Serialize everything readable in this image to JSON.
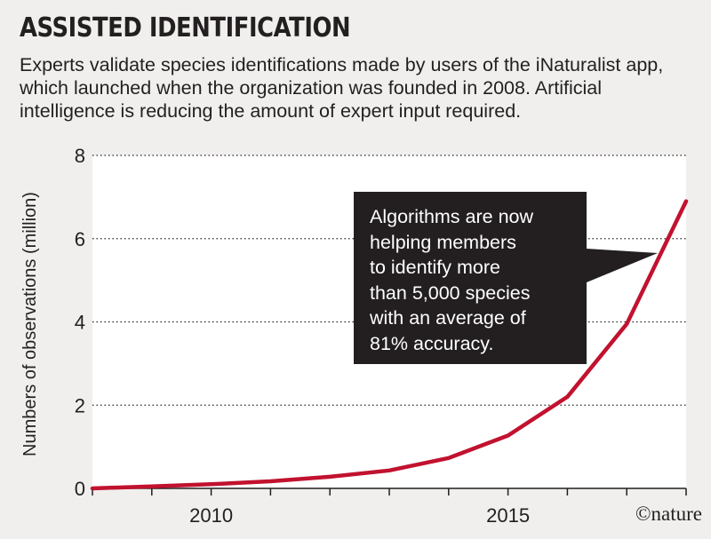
{
  "header": {
    "title": "ASSISTED IDENTIFICATION",
    "subtitle": "Experts validate species identifications made by users of the iNaturalist app, which launched when the organization was founded in 2008. Artificial intelligence is reducing the amount of expert input required."
  },
  "callout": {
    "lines": [
      "Algorithms are now",
      "helping members",
      "to identify more",
      "than 5,000 species",
      "with an average of",
      "81% accuracy."
    ]
  },
  "credit": "©nature",
  "colors": {
    "line": "#c1122f",
    "plot_background": "#ffffff",
    "page_background": "#f0efed",
    "callout_background": "#231f20"
  },
  "chart_data": {
    "type": "line",
    "title": "",
    "xlabel": "",
    "ylabel": "Numbers of observations (million)",
    "xlim": [
      2008,
      2018
    ],
    "ylim": [
      0,
      8
    ],
    "xticks": [
      2010,
      2015
    ],
    "yticks": [
      0,
      2,
      4,
      6,
      8
    ],
    "grid": "horizontal dotted",
    "series": [
      {
        "x": [
          2008,
          2009,
          2010,
          2011,
          2012,
          2013,
          2014,
          2015,
          2016,
          2017,
          2018
        ],
        "values": [
          0,
          0.05,
          0.1,
          0.17,
          0.28,
          0.43,
          0.73,
          1.27,
          2.2,
          3.95,
          6.9
        ]
      }
    ]
  }
}
